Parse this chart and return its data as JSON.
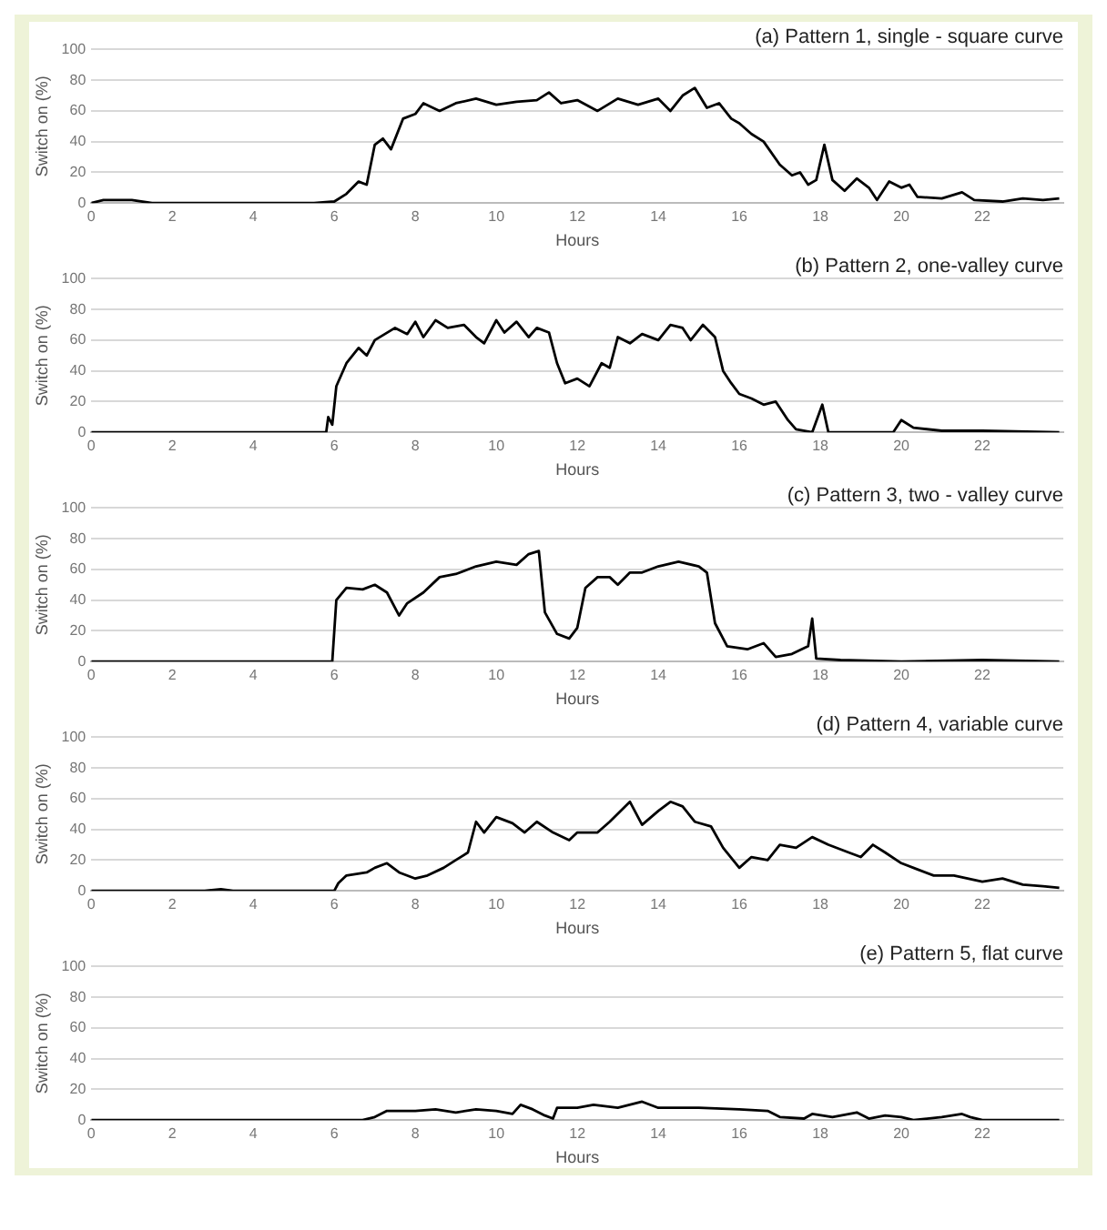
{
  "chart_data": [
    {
      "type": "line",
      "title": "(a) Pattern 1, single - square curve",
      "xlabel": "Hours",
      "ylabel": "Switch on (%)",
      "xlim": [
        0,
        24
      ],
      "xticks": [
        0,
        2,
        4,
        6,
        8,
        10,
        12,
        14,
        16,
        18,
        20,
        22
      ],
      "ylim": [
        0,
        100
      ],
      "yticks": [
        0,
        20,
        40,
        60,
        80,
        100
      ],
      "grid": "y",
      "legend": false,
      "marker": "none",
      "series": [
        {
          "color": "#000000",
          "x": [
            0,
            0.3,
            1,
            1.5,
            5.5,
            6,
            6.3,
            6.6,
            6.8,
            7,
            7.2,
            7.4,
            7.7,
            8,
            8.2,
            8.6,
            9,
            9.5,
            10,
            10.5,
            11,
            11.3,
            11.6,
            12,
            12.5,
            13,
            13.5,
            14,
            14.3,
            14.6,
            14.9,
            15.2,
            15.5,
            15.8,
            16,
            16.3,
            16.6,
            17,
            17.3,
            17.5,
            17.7,
            17.9,
            18.1,
            18.3,
            18.6,
            18.9,
            19.2,
            19.4,
            19.7,
            20,
            20.2,
            20.4,
            21,
            21.5,
            21.8,
            22.5,
            23,
            23.5,
            23.9
          ],
          "values": [
            0,
            2,
            2,
            0,
            0,
            1,
            6,
            14,
            12,
            38,
            42,
            35,
            55,
            58,
            65,
            60,
            65,
            68,
            64,
            66,
            67,
            72,
            65,
            67,
            60,
            68,
            64,
            68,
            60,
            70,
            75,
            62,
            65,
            55,
            52,
            45,
            40,
            25,
            18,
            20,
            12,
            15,
            38,
            15,
            8,
            16,
            10,
            2,
            14,
            10,
            12,
            4,
            3,
            7,
            2,
            1,
            3,
            2,
            3
          ]
        }
      ]
    },
    {
      "type": "line",
      "title": "(b) Pattern 2, one-valley curve",
      "xlabel": "Hours",
      "ylabel": "Switch on (%)",
      "xlim": [
        0,
        24
      ],
      "xticks": [
        0,
        2,
        4,
        6,
        8,
        10,
        12,
        14,
        16,
        18,
        20,
        22
      ],
      "ylim": [
        0,
        100
      ],
      "yticks": [
        0,
        20,
        40,
        60,
        80,
        100
      ],
      "grid": "y",
      "legend": false,
      "marker": "none",
      "series": [
        {
          "color": "#000000",
          "x": [
            0,
            5.8,
            5.85,
            5.95,
            6.05,
            6.3,
            6.6,
            6.8,
            7,
            7.5,
            7.8,
            8,
            8.2,
            8.5,
            8.8,
            9.2,
            9.5,
            9.7,
            10,
            10.2,
            10.5,
            10.8,
            11,
            11.3,
            11.5,
            11.7,
            12,
            12.3,
            12.6,
            12.8,
            13,
            13.3,
            13.6,
            14,
            14.3,
            14.6,
            14.8,
            15.1,
            15.4,
            15.6,
            15.8,
            16,
            16.3,
            16.6,
            16.9,
            17.2,
            17.4,
            17.8,
            18.05,
            18.2,
            19.8,
            20,
            20.3,
            21,
            22,
            23.9
          ],
          "values": [
            0,
            0,
            10,
            5,
            30,
            45,
            55,
            50,
            60,
            68,
            64,
            72,
            62,
            73,
            68,
            70,
            62,
            58,
            73,
            65,
            72,
            62,
            68,
            65,
            45,
            32,
            35,
            30,
            45,
            42,
            62,
            58,
            64,
            60,
            70,
            68,
            60,
            70,
            62,
            40,
            32,
            25,
            22,
            18,
            20,
            8,
            2,
            0,
            18,
            0,
            0,
            8,
            3,
            1,
            1,
            0
          ]
        }
      ]
    },
    {
      "type": "line",
      "title": "(c) Pattern 3, two - valley curve",
      "xlabel": "Hours",
      "ylabel": "Switch on (%)",
      "xlim": [
        0,
        24
      ],
      "xticks": [
        0,
        2,
        4,
        6,
        8,
        10,
        12,
        14,
        16,
        18,
        20,
        22
      ],
      "ylim": [
        0,
        100
      ],
      "yticks": [
        0,
        20,
        40,
        60,
        80,
        100
      ],
      "grid": "y",
      "legend": false,
      "marker": "none",
      "series": [
        {
          "color": "#000000",
          "x": [
            0,
            5.95,
            6.05,
            6.3,
            6.7,
            7,
            7.3,
            7.6,
            7.8,
            8.2,
            8.6,
            9,
            9.5,
            10,
            10.5,
            10.8,
            11.05,
            11.2,
            11.5,
            11.8,
            12,
            12.2,
            12.5,
            12.8,
            13,
            13.3,
            13.6,
            14,
            14.5,
            15,
            15.2,
            15.4,
            15.7,
            16.2,
            16.6,
            16.9,
            17.3,
            17.7,
            17.8,
            17.9,
            18.5,
            20,
            22,
            23.9
          ],
          "values": [
            0,
            0,
            40,
            48,
            47,
            50,
            45,
            30,
            38,
            45,
            55,
            57,
            62,
            65,
            63,
            70,
            72,
            32,
            18,
            15,
            22,
            48,
            55,
            55,
            50,
            58,
            58,
            62,
            65,
            62,
            58,
            25,
            10,
            8,
            12,
            3,
            5,
            10,
            28,
            2,
            1,
            0,
            1,
            0
          ]
        }
      ]
    },
    {
      "type": "line",
      "title": "(d) Pattern 4, variable curve",
      "xlabel": "Hours",
      "ylabel": "Switch on (%)",
      "xlim": [
        0,
        24
      ],
      "xticks": [
        0,
        2,
        4,
        6,
        8,
        10,
        12,
        14,
        16,
        18,
        20,
        22
      ],
      "ylim": [
        0,
        100
      ],
      "yticks": [
        0,
        20,
        40,
        60,
        80,
        100
      ],
      "grid": "y",
      "legend": false,
      "marker": "none",
      "series": [
        {
          "color": "#000000",
          "x": [
            0,
            2.8,
            3.2,
            3.5,
            6,
            6.1,
            6.3,
            6.8,
            7,
            7.3,
            7.6,
            8,
            8.3,
            8.7,
            9,
            9.3,
            9.5,
            9.7,
            10,
            10.4,
            10.7,
            11,
            11.4,
            11.8,
            12,
            12.5,
            12.8,
            13.3,
            13.6,
            14,
            14.3,
            14.6,
            14.9,
            15.3,
            15.6,
            16,
            16.3,
            16.7,
            17,
            17.4,
            17.8,
            18.2,
            18.7,
            19,
            19.3,
            19.6,
            20,
            20.4,
            20.8,
            21.3,
            22,
            22.5,
            23,
            23.5,
            23.9
          ],
          "values": [
            0,
            0,
            1,
            0,
            0,
            5,
            10,
            12,
            15,
            18,
            12,
            8,
            10,
            15,
            20,
            25,
            45,
            38,
            48,
            44,
            38,
            45,
            38,
            33,
            38,
            38,
            45,
            58,
            43,
            52,
            58,
            55,
            45,
            42,
            28,
            15,
            22,
            20,
            30,
            28,
            35,
            30,
            25,
            22,
            30,
            25,
            18,
            14,
            10,
            10,
            6,
            8,
            4,
            3,
            2
          ]
        }
      ]
    },
    {
      "type": "line",
      "title": "(e) Pattern 5, flat curve",
      "xlabel": "Hours",
      "ylabel": "Switch on (%)",
      "xlim": [
        0,
        24
      ],
      "xticks": [
        0,
        2,
        4,
        6,
        8,
        10,
        12,
        14,
        16,
        18,
        20,
        22
      ],
      "ylim": [
        0,
        100
      ],
      "yticks": [
        0,
        20,
        40,
        60,
        80,
        100
      ],
      "grid": "y",
      "legend": false,
      "marker": "none",
      "series": [
        {
          "color": "#000000",
          "x": [
            0,
            6.7,
            7,
            7.3,
            8,
            8.5,
            9,
            9.5,
            10,
            10.4,
            10.6,
            10.9,
            11.2,
            11.4,
            11.5,
            12,
            12.4,
            13,
            13.6,
            14,
            14.8,
            15,
            16,
            16.7,
            17,
            17.6,
            17.8,
            18.3,
            18.9,
            19.2,
            19.6,
            20,
            20.3,
            21,
            21.5,
            21.7,
            22,
            23.9
          ],
          "values": [
            0,
            0,
            2,
            6,
            6,
            7,
            5,
            7,
            6,
            4,
            10,
            7,
            3,
            1,
            8,
            8,
            10,
            8,
            12,
            8,
            8,
            8,
            7,
            6,
            2,
            1,
            4,
            2,
            5,
            1,
            3,
            2,
            0,
            2,
            4,
            2,
            0,
            0
          ]
        }
      ]
    }
  ]
}
